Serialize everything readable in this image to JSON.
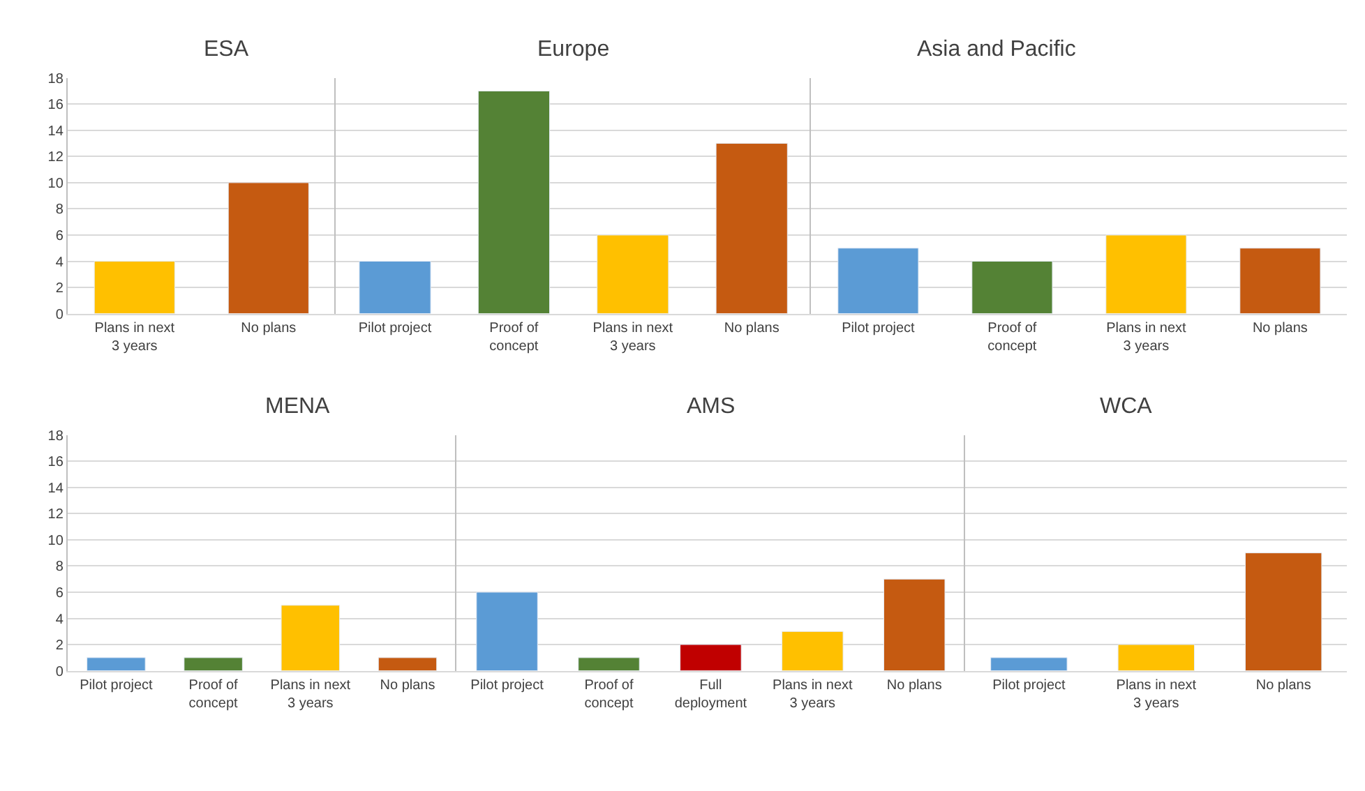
{
  "chart_data": [
    {
      "type": "bar",
      "title": "ESA",
      "categories": [
        "Plans in next 3 years",
        "No plans"
      ],
      "values": [
        4,
        10
      ],
      "colors": [
        "#ffc000",
        "#c55a11"
      ],
      "ylim": [
        0,
        18
      ],
      "yticks": [
        0,
        2,
        4,
        6,
        8,
        10,
        12,
        14,
        16,
        18
      ],
      "grid": "y"
    },
    {
      "type": "bar",
      "title": "Europe",
      "categories": [
        "Pilot project",
        "Proof of concept",
        "Plans in next 3 years",
        "No plans"
      ],
      "values": [
        4,
        17,
        6,
        13
      ],
      "colors": [
        "#5b9bd5",
        "#548235",
        "#ffc000",
        "#c55a11"
      ],
      "ylim": [
        0,
        18
      ],
      "yticks": [
        0,
        2,
        4,
        6,
        8,
        10,
        12,
        14,
        16,
        18
      ],
      "grid": "y",
      "tick_labels": "x"
    },
    {
      "type": "bar",
      "title": "Asia and Pacific",
      "categories": [
        "Pilot project",
        "Proof of concept",
        "Plans in next 3 years",
        "No plans"
      ],
      "values": [
        5,
        4,
        6,
        5
      ],
      "colors": [
        "#5b9bd5",
        "#548235",
        "#ffc000",
        "#c55a11"
      ],
      "ylim": [
        0,
        18
      ],
      "yticks": [
        0,
        2,
        4,
        6,
        8,
        10,
        12,
        14,
        16,
        18
      ],
      "grid": "y",
      "tick_labels": "x"
    },
    {
      "type": "bar",
      "title": "MENA",
      "categories": [
        "Pilot project",
        "Proof of concept",
        "Plans in next 3 years",
        "No plans"
      ],
      "values": [
        1,
        1,
        5,
        1
      ],
      "colors": [
        "#5b9bd5",
        "#548235",
        "#ffc000",
        "#c55a11"
      ],
      "ylim": [
        0,
        18
      ],
      "yticks": [
        0,
        2,
        4,
        6,
        8,
        10,
        12,
        14,
        16,
        18
      ],
      "grid": "y"
    },
    {
      "type": "bar",
      "title": "AMS",
      "categories": [
        "Pilot project",
        "Proof of concept",
        "Full deployment",
        "Plans in next 3 years",
        "No plans"
      ],
      "values": [
        6,
        1,
        2,
        3,
        7
      ],
      "colors": [
        "#5b9bd5",
        "#548235",
        "#c00000",
        "#ffc000",
        "#c55a11"
      ],
      "ylim": [
        0,
        18
      ],
      "yticks": [
        0,
        2,
        4,
        6,
        8,
        10,
        12,
        14,
        16,
        18
      ],
      "grid": "y",
      "tick_labels": "x"
    },
    {
      "type": "bar",
      "title": "WCA",
      "categories": [
        "Pilot project",
        "Plans in next 3 years",
        "No plans"
      ],
      "values": [
        1,
        2,
        9
      ],
      "colors": [
        "#5b9bd5",
        "#ffc000",
        "#c55a11"
      ],
      "ylim": [
        0,
        18
      ],
      "yticks": [
        0,
        2,
        4,
        6,
        8,
        10,
        12,
        14,
        16,
        18
      ],
      "grid": "y",
      "tick_labels": "x"
    }
  ]
}
